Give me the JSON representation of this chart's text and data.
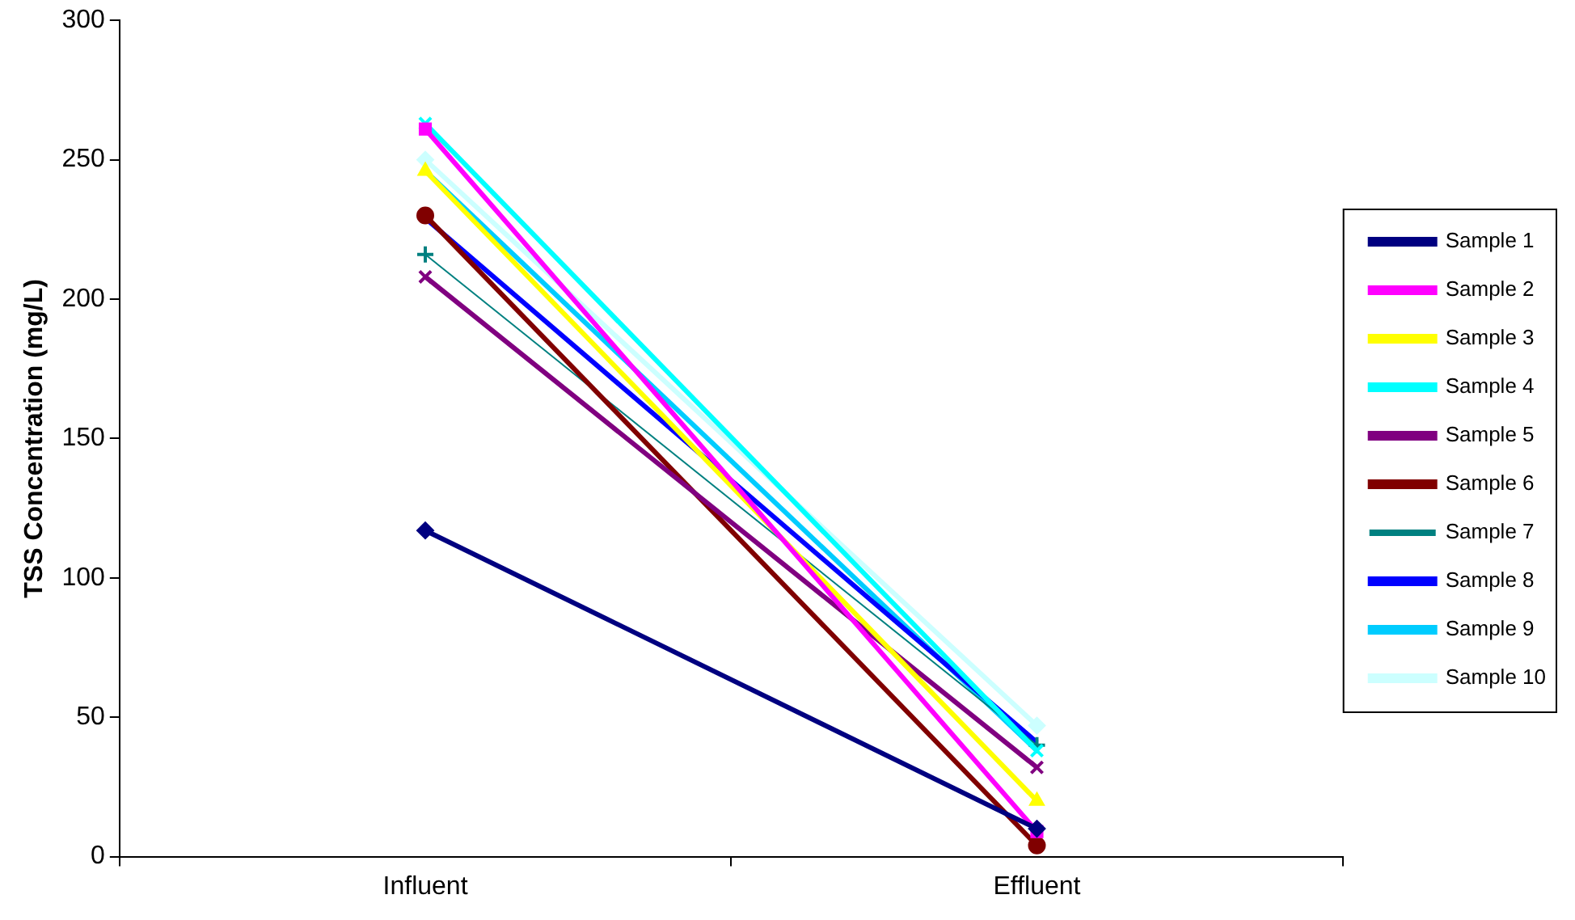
{
  "chart_data": {
    "type": "line",
    "ylabel": "TSS Concentration (mg/L)",
    "categories": [
      "Influent",
      "Effluent"
    ],
    "ylim": [
      0,
      300
    ],
    "yticks": [
      0,
      50,
      100,
      150,
      200,
      250,
      300
    ],
    "grid": false,
    "legend": "right",
    "series": [
      {
        "name": "Sample 1",
        "color": "#000080",
        "marker": "diamond",
        "values": [
          117,
          10
        ]
      },
      {
        "name": "Sample 2",
        "color": "#ff00ff",
        "marker": "square",
        "values": [
          261,
          9
        ]
      },
      {
        "name": "Sample 3",
        "color": "#ffff00",
        "marker": "triangle",
        "values": [
          246,
          20
        ]
      },
      {
        "name": "Sample 4",
        "color": "#00ffff",
        "marker": "cross",
        "values": [
          263,
          38
        ]
      },
      {
        "name": "Sample 5",
        "color": "#800080",
        "marker": "cross",
        "values": [
          208,
          32
        ]
      },
      {
        "name": "Sample 6",
        "color": "#800000",
        "marker": "circle",
        "values": [
          230,
          4
        ]
      },
      {
        "name": "Sample 7",
        "color": "#008080",
        "marker": "plus",
        "values": [
          216,
          40
        ]
      },
      {
        "name": "Sample 8",
        "color": "#0000ff",
        "marker": "none",
        "values": [
          229,
          41
        ]
      },
      {
        "name": "Sample 9",
        "color": "#00ccff",
        "marker": "none",
        "values": [
          246,
          38
        ]
      },
      {
        "name": "Sample 10",
        "color": "#ccffff",
        "marker": "diamond",
        "values": [
          250,
          47
        ]
      }
    ]
  }
}
